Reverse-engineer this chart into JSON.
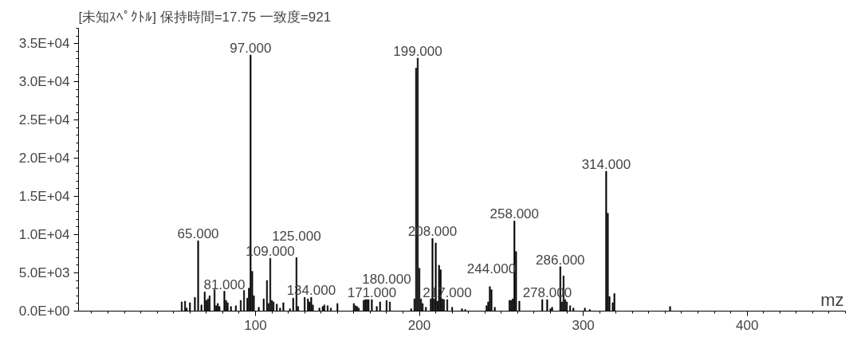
{
  "chart_data": {
    "type": "bar",
    "title": "[未知ｽﾍﾟｸﾄﾙ] 保持時間=17.75  一致度=921",
    "xlabel": "mz",
    "x": [
      55,
      57,
      58,
      60,
      63,
      65,
      67,
      69,
      70,
      71,
      72,
      75,
      76,
      77,
      78,
      81,
      82,
      83,
      85,
      88,
      91,
      93,
      95,
      96,
      97,
      98,
      99,
      102,
      105,
      107,
      108,
      109,
      110,
      111,
      113,
      115,
      117,
      121,
      123,
      125,
      126,
      130,
      132,
      133,
      134,
      135,
      139,
      141,
      142,
      144,
      146,
      150,
      160,
      161,
      162,
      163,
      166,
      167,
      168,
      169,
      171,
      174,
      176,
      180,
      182,
      195,
      197,
      198,
      199,
      200,
      201,
      202,
      204,
      207,
      208,
      209,
      210,
      211,
      212,
      213,
      214,
      215,
      217,
      220,
      226,
      228,
      241,
      242,
      243,
      244,
      246,
      255,
      256,
      257,
      258,
      259,
      261,
      275,
      278,
      280,
      281,
      286,
      287,
      288,
      289,
      290,
      292,
      294,
      301,
      304,
      314,
      315,
      316,
      318,
      319,
      353
    ],
    "values": [
      1200,
      1300,
      400,
      1100,
      1800,
      9200,
      800,
      2500,
      1400,
      1600,
      2000,
      2800,
      700,
      1000,
      600,
      2600,
      1400,
      1100,
      600,
      700,
      1400,
      2700,
      1700,
      3000,
      33500,
      5200,
      2000,
      500,
      1600,
      4000,
      1000,
      6900,
      1400,
      1200,
      900,
      400,
      1100,
      300,
      1700,
      7000,
      600,
      1800,
      1600,
      1200,
      1800,
      800,
      400,
      600,
      800,
      700,
      400,
      1000,
      1000,
      700,
      600,
      400,
      1400,
      1500,
      1500,
      1500,
      1500,
      600,
      1200,
      1400,
      1200,
      300,
      1600,
      31800,
      33100,
      5600,
      1600,
      1000,
      500,
      1600,
      9500,
      1600,
      8900,
      1300,
      6000,
      5400,
      1600,
      1500,
      1500,
      500,
      300,
      200,
      700,
      1200,
      3200,
      2800,
      500,
      1400,
      1400,
      1600,
      11800,
      7800,
      1300,
      1500,
      1500,
      300,
      500,
      5800,
      1200,
      4600,
      1500,
      1200,
      700,
      400,
      400,
      200,
      18300,
      12800,
      1900,
      1100,
      2300,
      600
    ],
    "color": "#000000",
    "xlim": [
      -8,
      460
    ],
    "xticks": [
      100,
      200,
      300,
      400
    ],
    "ylim": [
      0,
      37000
    ],
    "yticks": [
      {
        "value": 0,
        "label": "0.0E+00"
      },
      {
        "value": 5000,
        "label": "5.0E+03"
      },
      {
        "value": 10000,
        "label": "1.0E+04"
      },
      {
        "value": 15000,
        "label": "1.5E+04"
      },
      {
        "value": 20000,
        "label": "2.0E+04"
      },
      {
        "value": 25000,
        "label": "2.5E+04"
      },
      {
        "value": 30000,
        "label": "3.0E+04"
      },
      {
        "value": 35000,
        "label": "3.5E+04"
      }
    ],
    "grid": false,
    "annotations": [
      {
        "text": "65.000",
        "x": 65,
        "y": 9200
      },
      {
        "text": "81.000",
        "x": 81,
        "y": 2600
      },
      {
        "text": "97.000",
        "x": 97,
        "y": 33500
      },
      {
        "text": "109.000",
        "x": 109,
        "y": 6900
      },
      {
        "text": "125.000",
        "x": 125,
        "y": 7000
      },
      {
        "text": "134.000",
        "x": 134,
        "y": 1800
      },
      {
        "text": "171.000",
        "x": 171,
        "y": 1500
      },
      {
        "text": "180.000",
        "x": 180,
        "y": 1400
      },
      {
        "text": "199.000",
        "x": 199,
        "y": 33100
      },
      {
        "text": "208.000",
        "x": 208,
        "y": 9500
      },
      {
        "text": "217.000",
        "x": 217,
        "y": 1500
      },
      {
        "text": "244.000",
        "x": 244,
        "y": 2800
      },
      {
        "text": "258.000",
        "x": 258,
        "y": 11800
      },
      {
        "text": "278.000",
        "x": 278,
        "y": 1500
      },
      {
        "text": "286.000",
        "x": 286,
        "y": 5800
      },
      {
        "text": "314.000",
        "x": 314,
        "y": 18300
      }
    ]
  }
}
